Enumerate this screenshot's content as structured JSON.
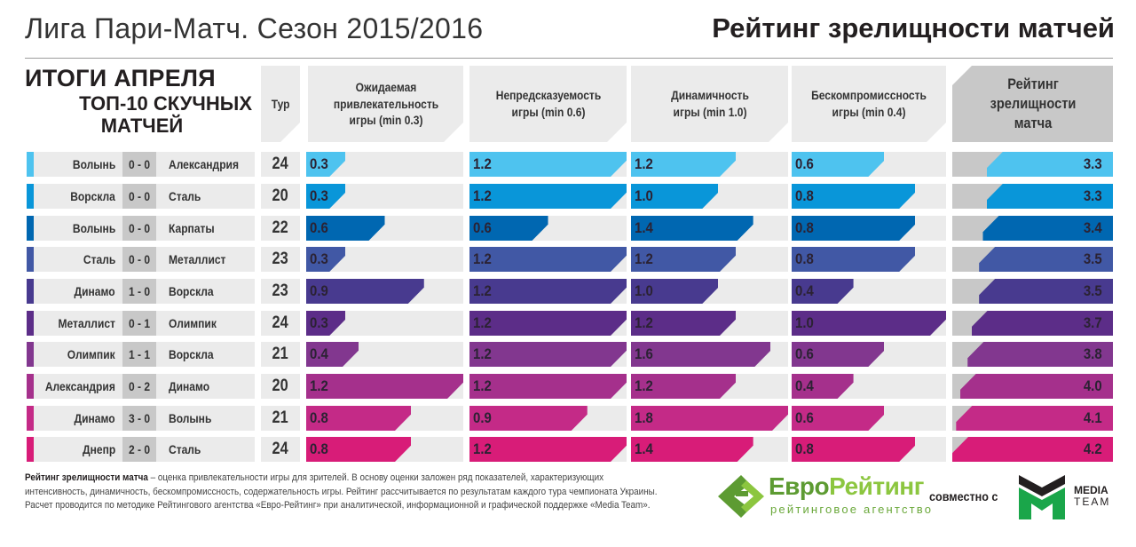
{
  "header": {
    "title_left": "Лига Пари-Матч. Сезон 2015/2016",
    "title_right": "Рейтинг зрелищности матчей"
  },
  "subtitle": {
    "line1": "ИТОГИ АПРЕЛЯ",
    "line2": "ТОП-10 СКУЧНЫХ",
    "line3": "МАТЧЕЙ"
  },
  "columns": {
    "tour": "Тур",
    "expected": "Ожидаемая привлекательность игры (min 0.3)",
    "unpredictability": "Непредсказуемость игры (min 0.6)",
    "dynamics": "Динамичность игры (min 1.0)",
    "uncompromising": "Бескомпромиссность игры (min 0.4)",
    "rating": "Рейтинг зрелищности матча"
  },
  "chart_data": {
    "type": "table",
    "title": "Рейтинг зрелищности матчей",
    "subtitle": "ИТОГИ АПРЕЛЯ ТОП-10 СКУЧНЫХ МАТЧЕЙ",
    "scales": {
      "expected_max": 1.2,
      "unpredictability_max": 1.2,
      "dynamics_max": 1.8,
      "uncompromising_max": 1.0,
      "rating_max": 4.2
    },
    "rows": [
      {
        "home": "Волынь",
        "score": "0 - 0",
        "away": "Александрия",
        "tour": "24",
        "expected": "0.3",
        "unpredictability": "1.2",
        "dynamics": "1.2",
        "uncompromising": "0.6",
        "rating": "3.3",
        "color": "#4ec3ef"
      },
      {
        "home": "Ворскла",
        "score": "0 - 0",
        "away": "Сталь",
        "tour": "20",
        "expected": "0.3",
        "unpredictability": "1.2",
        "dynamics": "1.0",
        "uncompromising": "0.8",
        "rating": "3.3",
        "color": "#0996d9"
      },
      {
        "home": "Волынь",
        "score": "0 - 0",
        "away": "Карпаты",
        "tour": "22",
        "expected": "0.6",
        "unpredictability": "0.6",
        "dynamics": "1.4",
        "uncompromising": "0.8",
        "rating": "3.4",
        "color": "#0067b1"
      },
      {
        "home": "Сталь",
        "score": "0 - 0",
        "away": "Металлист",
        "tour": "23",
        "expected": "0.3",
        "unpredictability": "1.2",
        "dynamics": "1.2",
        "uncompromising": "0.8",
        "rating": "3.5",
        "color": "#4158a5"
      },
      {
        "home": "Динамо",
        "score": "1 - 0",
        "away": "Ворскла",
        "tour": "23",
        "expected": "0.9",
        "unpredictability": "1.2",
        "dynamics": "1.0",
        "uncompromising": "0.4",
        "rating": "3.5",
        "color": "#483a8f"
      },
      {
        "home": "Металлист",
        "score": "0 - 1",
        "away": "Олимпик",
        "tour": "24",
        "expected": "0.3",
        "unpredictability": "1.2",
        "dynamics": "1.2",
        "uncompromising": "1.0",
        "rating": "3.7",
        "color": "#5c2d88"
      },
      {
        "home": "Олимпик",
        "score": "1 - 1",
        "away": "Ворскла",
        "tour": "21",
        "expected": "0.4",
        "unpredictability": "1.2",
        "dynamics": "1.6",
        "uncompromising": "0.6",
        "rating": "3.8",
        "color": "#82378f"
      },
      {
        "home": "Александрия",
        "score": "0 - 2",
        "away": "Динамо",
        "tour": "20",
        "expected": "1.2",
        "unpredictability": "1.2",
        "dynamics": "1.2",
        "uncompromising": "0.4",
        "rating": "4.0",
        "color": "#a5308c"
      },
      {
        "home": "Динамо",
        "score": "3 - 0",
        "away": "Волынь",
        "tour": "21",
        "expected": "0.8",
        "unpredictability": "0.9",
        "dynamics": "1.8",
        "uncompromising": "0.6",
        "rating": "4.1",
        "color": "#c42a87"
      },
      {
        "home": "Днепр",
        "score": "2 - 0",
        "away": "Сталь",
        "tour": "24",
        "expected": "0.8",
        "unpredictability": "1.2",
        "dynamics": "1.4",
        "uncompromising": "0.8",
        "rating": "4.2",
        "color": "#d81c78"
      }
    ]
  },
  "footnote": {
    "bold": "Рейтинг зрелищности матча",
    "text": " – оценка привлекательности игры для зрителей. В основу оценки заложен ряд показателей, характеризующих интенсивность, динамичность, бескомпромиссность, содержательность игры. Рейтинг рассчитывается по результатам каждого тура чемпионата Украины. Расчет проводится по методике Рейтингового агентства «Евро-Рейтинг» при аналитической, информационной и графической поддержке «Media Team»."
  },
  "logos": {
    "euro_name_part1": "Евро",
    "euro_name_part2": "Рейтинг",
    "euro_sub": "рейтинговое агентство",
    "with": "совместно с",
    "mt_line1": "MEDIA",
    "mt_line2": "TEAM",
    "euro_color_dark": "#5d9b32",
    "euro_color_light": "#8cc63f",
    "mt_green": "#1aa64a"
  }
}
